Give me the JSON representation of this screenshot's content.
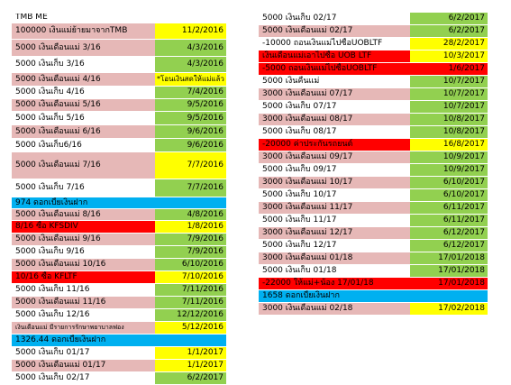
{
  "colors": {
    "pink": "#e6b8b7",
    "white": "#ffffff",
    "yellow": "#ffff00",
    "green": "#92d050",
    "red": "#ff0000",
    "blue": "#00b0f0"
  },
  "left_table": {
    "title": "TMB ME",
    "rows": [
      {
        "desc": "100000 เงินแม่ย้ายมาจากTMB",
        "date": "11/2/2016",
        "c1": "pink",
        "c2": "yellow",
        "h": 18
      },
      {
        "desc": "5000 เงินเดือนแม่  3/16",
        "date": "4/3/2016",
        "c1": "pink",
        "c2": "green",
        "h": 19
      },
      {
        "desc": "5000 เงินเก็บ  3/16",
        "date": "4/3/2016",
        "c1": "white",
        "c2": "green",
        "h": 18
      },
      {
        "desc": "5000 เงินเดือนแม่   4/16",
        "date": "*โอนเงินสดให้แม่แล้ว",
        "c1": "pink",
        "c2": "yellow",
        "h": 15
      },
      {
        "desc": "5000 เงินเก็บ  4/16",
        "date": "7/4/2016",
        "c1": "white",
        "c2": "green",
        "h": 14
      },
      {
        "desc": "5000 เงินเดือนแม่  5/16",
        "date": "9/5/2016",
        "c1": "pink",
        "c2": "green",
        "h": 14
      },
      {
        "desc": "5000 เงินเก็บ  5/16",
        "date": "9/5/2016",
        "c1": "white",
        "c2": "green",
        "h": 15
      },
      {
        "desc": "5000 เงินเดือนแม่ 6/16",
        "date": "9/6/2016",
        "c1": "pink",
        "c2": "green",
        "h": 15
      },
      {
        "desc": "5000 เงินเก็บ6/16",
        "date": "9/6/2016",
        "c1": "white",
        "c2": "green",
        "h": 15
      },
      {
        "desc": "5000 เงินเดือนแม่ 7/16",
        "date": "7/7/2016",
        "c1": "pink",
        "c2": "yellow",
        "h": 30
      },
      {
        "desc": "5000 เงินเก็บ 7/16",
        "date": "7/7/2016",
        "c1": "white",
        "c2": "green",
        "h": 20
      },
      {
        "desc": "974  ดอกเบี้ยเงินฝาก",
        "date": "",
        "c1": "blue",
        "c2": "blue",
        "h": 13
      },
      {
        "desc": "5000 เงินเดือนแม่ 8/16",
        "date": "4/8/2016",
        "c1": "pink",
        "c2": "green",
        "h": 13
      },
      {
        "desc": "8/16 ซื้อ  KFSDIV",
        "date": "1/8/2016",
        "c1": "red",
        "c2": "yellow",
        "h": 14
      },
      {
        "desc": "5000 เงินเดือนแม่ 9/16",
        "date": "7/9/2016",
        "c1": "pink",
        "c2": "green",
        "h": 14
      },
      {
        "desc": "5000 เงินเก็บ 9/16",
        "date": "7/9/2016",
        "c1": "white",
        "c2": "green",
        "h": 14
      },
      {
        "desc": "5000 เงินเดือนแม่ 10/16",
        "date": "6/10/2016",
        "c1": "pink",
        "c2": "green",
        "h": 14
      },
      {
        "desc": "10/16 ซื้อ KFLTF",
        "date": "7/10/2016",
        "c1": "red",
        "c2": "yellow",
        "h": 14
      },
      {
        "desc": "5000 เงินเก็บ 11/16",
        "date": "7/11/2016",
        "c1": "white",
        "c2": "green",
        "h": 14
      },
      {
        "desc": "5000 เงินเดือนแม่ 11/16",
        "date": "7/11/2016",
        "c1": "pink",
        "c2": "green",
        "h": 14
      },
      {
        "desc": "5000 เงินเก็บ 12/16",
        "date": "12/12/2016",
        "c1": "white",
        "c2": "green",
        "h": 14
      },
      {
        "desc": "เงินเดือนแม่ มีรายการรักษาพยาบาลฟอง",
        "date": "5/12/2016",
        "c1": "pink",
        "c2": "yellow",
        "h": 14
      },
      {
        "desc": "1326.44  ดอกเบี้ยเงินฝาก",
        "date": "",
        "c1": "blue",
        "c2": "blue",
        "h": 14
      },
      {
        "desc": "5000  เงินเก็บ 01/17",
        "date": "1/1/2017",
        "c1": "white",
        "c2": "yellow",
        "h": 14
      },
      {
        "desc": "5000 เงินเดือนแม่ 01/17",
        "date": "1/1/2017",
        "c1": "pink",
        "c2": "yellow",
        "h": 14
      },
      {
        "desc": "5000 เงินเก็บ 02/17",
        "date": "6/2/2017",
        "c1": "white",
        "c2": "green",
        "h": 14
      }
    ]
  },
  "right_table": {
    "rows": [
      {
        "desc": "5000  เงินเก็บ  02/17",
        "date": "6/2/2017",
        "c1": "white",
        "c2": "green",
        "h": 14
      },
      {
        "desc": "5000  เงินเดือนแม่  02/17",
        "date": "6/2/2017",
        "c1": "pink",
        "c2": "green",
        "h": 14
      },
      {
        "desc": "-10000  ถอนเงินแม่ไปซื้อUOBLTF",
        "date": "28/2/2017",
        "c1": "white",
        "c2": "yellow",
        "h": 14
      },
      {
        "desc": "เงินเดือนแม่เอาไปซื้อ UOB LTF",
        "date": "10/3/2017",
        "c1": "red",
        "c2": "yellow",
        "h": 14
      },
      {
        "desc": "-5000  ถอนเงินแม่ไปซื้อUOBLTF",
        "date": "1/6/2017",
        "c1": "red",
        "c2": "red",
        "h": 14
      },
      {
        "desc": "5000  เงินคืนแม่",
        "date": "10/7/2017",
        "c1": "white",
        "c2": "green",
        "h": 14
      },
      {
        "desc": "3000  เงินเดือนแม่  07/17",
        "date": "10/7/2017",
        "c1": "pink",
        "c2": "green",
        "h": 14
      },
      {
        "desc": "5000  เงินเก็บ  07/17",
        "date": "10/7/2017",
        "c1": "white",
        "c2": "green",
        "h": 14
      },
      {
        "desc": "3000  เงินเดือนแม่  08/17",
        "date": "10/8/2017",
        "c1": "pink",
        "c2": "green",
        "h": 14
      },
      {
        "desc": "5000  เงินเก็บ  08/17",
        "date": "10/8/2017",
        "c1": "white",
        "c2": "green",
        "h": 14
      },
      {
        "desc": "-20000  ค่าประกันรถยนต์",
        "date": "16/8/2017",
        "c1": "red",
        "c2": "yellow",
        "h": 14
      },
      {
        "desc": "3000  เงินเดือนแม่  09/17",
        "date": "10/9/2017",
        "c1": "pink",
        "c2": "green",
        "h": 14
      },
      {
        "desc": "5000  เงินเก็บ  09/17",
        "date": "10/9/2017",
        "c1": "white",
        "c2": "green",
        "h": 14
      },
      {
        "desc": "3000  เงินเดือนแม่  10/17",
        "date": "6/10/2017",
        "c1": "pink",
        "c2": "green",
        "h": 14
      },
      {
        "desc": "5000  เงินเก็บ  10/17",
        "date": "6/10/2017",
        "c1": "white",
        "c2": "green",
        "h": 14
      },
      {
        "desc": "3000  เงินเดือนแม่  11/17",
        "date": "6/11/2017",
        "c1": "pink",
        "c2": "green",
        "h": 14
      },
      {
        "desc": "5000  เงินเก็บ  11/17",
        "date": "6/11/2017",
        "c1": "white",
        "c2": "green",
        "h": 14
      },
      {
        "desc": "3000  เงินเดือนแม่  12/17",
        "date": "6/12/2017",
        "c1": "pink",
        "c2": "green",
        "h": 14
      },
      {
        "desc": "5000  เงินเก็บ  12/17",
        "date": "6/12/2017",
        "c1": "white",
        "c2": "green",
        "h": 14
      },
      {
        "desc": "3000  เงินเดือนแม่  01/18",
        "date": "17/01/2018",
        "c1": "pink",
        "c2": "green",
        "h": 14
      },
      {
        "desc": "5000  เงินเก็บ  01/18",
        "date": "17/01/2018",
        "c1": "white",
        "c2": "green",
        "h": 14
      },
      {
        "desc": "-22000  ให้แม่+น้อง  17/01/18",
        "date": "17/01/2018",
        "c1": "red",
        "c2": "red",
        "h": 14
      },
      {
        "desc": "1658  ดอกเบี้ยเงินฝาก",
        "date": "",
        "c1": "blue",
        "c2": "blue",
        "h": 14
      },
      {
        "desc": "3000  เงินเดือนแม่  02/18",
        "date": "17/02/2018",
        "c1": "pink",
        "c2": "yellow",
        "h": 14
      }
    ]
  }
}
